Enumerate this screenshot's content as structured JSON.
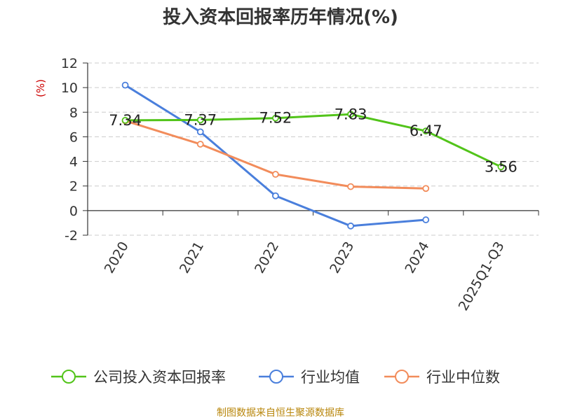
{
  "chart_data": {
    "type": "line",
    "title": "投入资本回报率历年情况(%)",
    "ylabel": "(%)",
    "categories": [
      "2020",
      "2021",
      "2022",
      "2023",
      "2024",
      "2025Q1-Q3"
    ],
    "yticks": [
      "12",
      "10",
      "8",
      "6",
      "4",
      "2",
      "0",
      "-2"
    ],
    "ylim": [
      -2,
      12
    ],
    "grid": true,
    "legend_position": "bottom",
    "series": [
      {
        "name": "公司投入资本回报率",
        "color": "#52c41a",
        "values": [
          7.34,
          7.37,
          7.52,
          7.83,
          6.47,
          3.56
        ],
        "labels": [
          "7.34",
          "7.37",
          "7.52",
          "7.83",
          "6.47",
          "3.56"
        ]
      },
      {
        "name": "行业均值",
        "color": "#4a7fdc",
        "values": [
          10.2,
          6.4,
          1.2,
          -1.25,
          -0.75,
          null
        ]
      },
      {
        "name": "行业中位数",
        "color": "#f28c5b",
        "values": [
          7.3,
          5.4,
          2.95,
          1.95,
          1.8,
          null
        ]
      }
    ]
  },
  "footer": {
    "source": "制图数据来自恒生聚源数据库"
  }
}
